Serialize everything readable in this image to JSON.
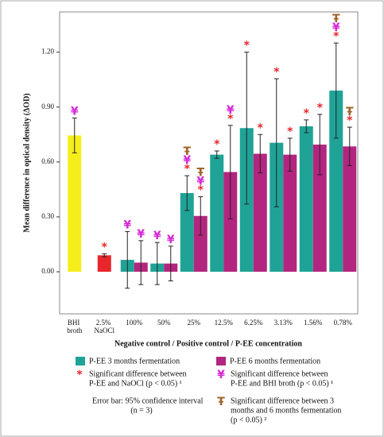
{
  "chart_data": {
    "type": "bar",
    "y_label": "Mean difference in optical density (ΔOD)",
    "x_label": "Negative control / Positive control / P-EE concentration",
    "categories": [
      "BHI broth",
      "2.5% NaOCl",
      "100%",
      "50%",
      "25%",
      "12.5%",
      "6.25%",
      "3.13%",
      "1.56%",
      "0.78%"
    ],
    "ylim": [
      -0.23,
      1.42
    ],
    "yticks": [
      {
        "value": 0,
        "label": "0.00"
      },
      {
        "value": 0.3,
        "label": "0.30"
      },
      {
        "value": 0.6,
        "label": "0.60"
      },
      {
        "value": 0.9,
        "label": "0.90"
      },
      {
        "value": 1.2,
        "label": "1.20"
      }
    ],
    "controls": {
      "values": [
        0.745,
        0.09
      ],
      "errors": [
        0.095,
        0.008
      ],
      "colors": [
        "#f5ee1a",
        "#e8262b"
      ],
      "markers": [
        [
          "¥"
        ],
        [
          "*"
        ]
      ]
    },
    "series": [
      {
        "name": "P-EE 3 months fermentation",
        "color": "#1fa396",
        "values": [
          null,
          null,
          0.065,
          0.045,
          0.43,
          0.64,
          0.785,
          0.705,
          0.795,
          0.99
        ],
        "errors": [
          null,
          null,
          0.155,
          0.115,
          0.095,
          0.02,
          0.415,
          0.35,
          0.035,
          0.26
        ],
        "markers": [
          null,
          null,
          [
            "¥"
          ],
          [
            "¥"
          ],
          [
            "*",
            "¥",
            "Ŧ"
          ],
          [
            "*"
          ],
          [
            "*"
          ],
          [
            "*"
          ],
          [
            "*"
          ],
          [
            "*",
            "¥",
            "Ŧ"
          ]
        ]
      },
      {
        "name": "P-EE 6 months fermentation",
        "color": "#b3267f",
        "values": [
          null,
          null,
          0.05,
          0.045,
          0.305,
          0.545,
          0.645,
          0.64,
          0.695,
          0.685
        ],
        "errors": [
          null,
          null,
          0.12,
          0.095,
          0.105,
          0.255,
          0.105,
          0.09,
          0.165,
          0.105
        ],
        "markers": [
          null,
          null,
          [
            "¥"
          ],
          [
            "¥"
          ],
          [
            "*",
            "¥",
            "Ŧ"
          ],
          [
            "*",
            "¥"
          ],
          [
            "*"
          ],
          [
            "*"
          ],
          [
            "*"
          ],
          [
            "*",
            "Ŧ"
          ]
        ]
      }
    ],
    "significance": [
      {
        "symbol": "*",
        "color": "#e8262b",
        "lines": [
          "Significant difference between",
          "P-EE and NaOCl (p < 0.05) ¹"
        ]
      },
      {
        "symbol": "¥",
        "color": "#d62ad6",
        "lines": [
          "Significant difference between",
          "P-EE and BHI broth (p < 0.05) ¹"
        ]
      },
      {
        "symbol": "Ŧ",
        "color": "#a0642a",
        "lines": [
          "Significant difference between 3",
          "months and 6 months fermentation",
          "(p < 0.05) ²"
        ]
      }
    ],
    "error_note": [
      "Error bar: 95% confidence interval",
      "(n = 3)"
    ]
  }
}
